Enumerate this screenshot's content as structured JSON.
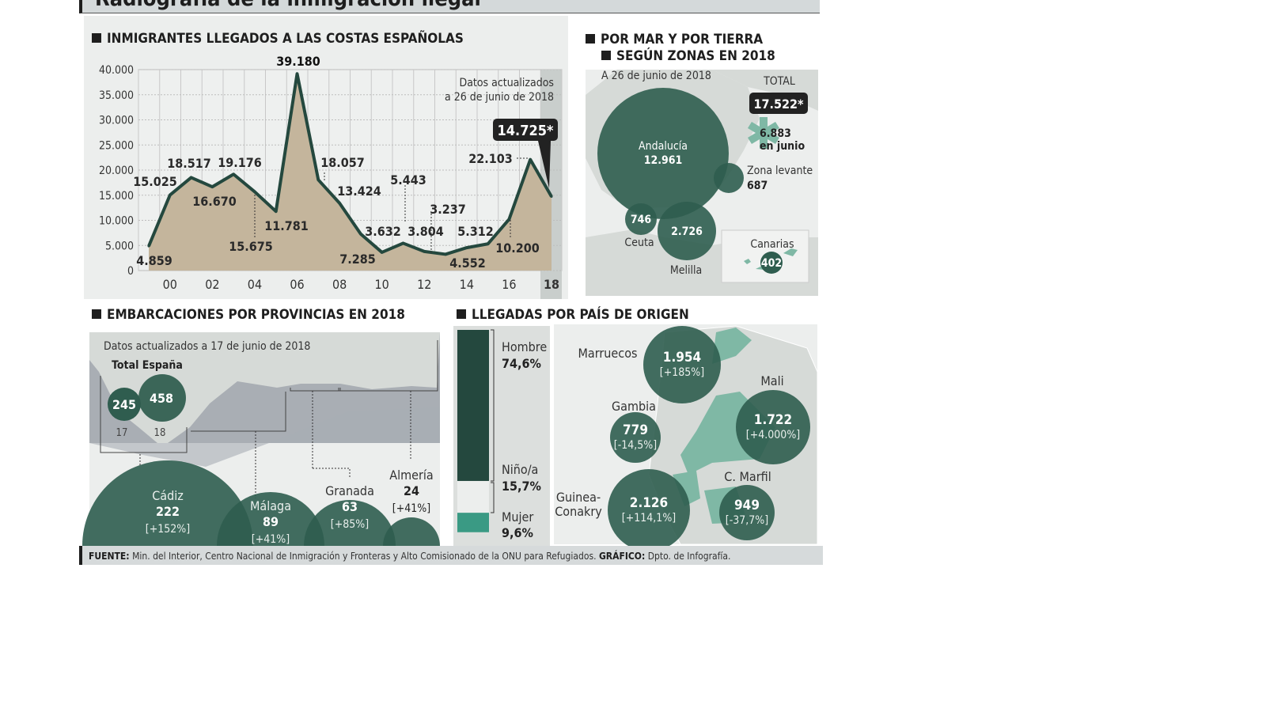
{
  "title": "Radiografía de la inmigración ilegal",
  "colors": {
    "dark_green": "#2f5d4f",
    "line": "#24483e",
    "area": "#c4b59c",
    "teal": "#3a9a84",
    "light_teal": "#7fb8a5",
    "panel": "#eceeed",
    "map_land": "#d6dad7",
    "sea": "#a9aeb4",
    "badge": "#222222"
  },
  "chart_data": [
    {
      "type": "area",
      "title": "INMIGRANTES LLEGADOS A LAS COSTAS ESPAÑOLAS",
      "note": "Datos actualizados a 26 de junio de 2018",
      "x": [
        1999,
        2000,
        2001,
        2002,
        2003,
        2004,
        2005,
        2006,
        2007,
        2008,
        2009,
        2010,
        2011,
        2012,
        2013,
        2014,
        2015,
        2016,
        2017,
        2018
      ],
      "values": [
        4859,
        15025,
        18517,
        16670,
        19176,
        15675,
        11781,
        39180,
        18057,
        13424,
        7285,
        3632,
        5443,
        3804,
        3237,
        4552,
        5312,
        10200,
        22103,
        14725
      ],
      "data_labels": [
        "4.859",
        "15.025",
        "18.517",
        "16.670",
        "19.176",
        "15.675",
        "11.781",
        "39.180",
        "18.057",
        "13.424",
        "7.285",
        "3.632",
        "5.443",
        "3.804",
        "3.237",
        "4.552",
        "5.312",
        "10.200",
        "22.103",
        "14.725*"
      ],
      "x_tick_labels": [
        "00",
        "02",
        "04",
        "06",
        "08",
        "10",
        "12",
        "14",
        "16",
        "18"
      ],
      "y_tick_labels": [
        "0",
        "5.000",
        "10.000",
        "15.000",
        "20.000",
        "25.000",
        "30.000",
        "35.000",
        "40.000"
      ],
      "ylim": [
        0,
        40000
      ],
      "grid": true,
      "highlight": "18"
    },
    {
      "type": "bubble",
      "title_line1": "POR MAR Y POR TIERRA",
      "title_line2": "SEGÚN ZONAS EN 2018",
      "subtitle": "A 26 de junio de 2018",
      "total_label": "TOTAL",
      "total_value": "17.522*",
      "june_value": "6.883",
      "june_label": "en junio",
      "zones": [
        {
          "name": "Andalucía",
          "value": 12961,
          "label": "12.961"
        },
        {
          "name": "Zona levante",
          "value": 687,
          "label": "687"
        },
        {
          "name": "Ceuta",
          "value": 746,
          "label": "746"
        },
        {
          "name": "Melilla",
          "value": 2726,
          "label": "2.726"
        },
        {
          "name": "Canarias",
          "value": 402,
          "label": "402"
        }
      ]
    },
    {
      "type": "bubble",
      "title": "EMBARCACIONES POR PROVINCIAS EN 2018",
      "note": "Datos actualizados a 17 de junio de 2018",
      "total_label": "Total España",
      "totals": [
        {
          "year": "17",
          "value": 245,
          "label": "245"
        },
        {
          "year": "18",
          "value": 458,
          "label": "458"
        }
      ],
      "provinces": [
        {
          "name": "Cádiz",
          "value": 222,
          "label": "222",
          "change": "[+152%]"
        },
        {
          "name": "Málaga",
          "value": 89,
          "label": "89",
          "change": "[+41%]"
        },
        {
          "name": "Granada",
          "value": 63,
          "label": "63",
          "change": "[+85%]"
        },
        {
          "name": "Almería",
          "value": 24,
          "label": "24",
          "change": "[+41%]"
        }
      ]
    },
    {
      "type": "bubble",
      "title": "LLEGADAS POR PAÍS DE ORIGEN",
      "gender": [
        {
          "name": "Hombre",
          "value": 74.6,
          "label": "74,6%"
        },
        {
          "name": "Niño/a",
          "value": 15.7,
          "label": "15,7%"
        },
        {
          "name": "Mujer",
          "value": 9.6,
          "label": "9,6%"
        }
      ],
      "countries": [
        {
          "name": "Marruecos",
          "value": 1954,
          "label": "1.954",
          "change": "[+185%]"
        },
        {
          "name": "Gambia",
          "value": 779,
          "label": "779",
          "change": "[-14,5%]"
        },
        {
          "name": "Mali",
          "value": 1722,
          "label": "1.722",
          "change": "[+4.000%]"
        },
        {
          "name": "Guinea-",
          "name2": "Conakry",
          "value": 2126,
          "label": "2.126",
          "change": "[+114,1%]"
        },
        {
          "name": "C. Marfil",
          "value": 949,
          "label": "949",
          "change": "[-37,7%]"
        }
      ]
    }
  ],
  "footer": {
    "source_label": "FUENTE:",
    "source": "Min. del Interior, Centro Nacional de Inmigración y Fronteras y Alto Comisionado de la ONU para Refugiados.",
    "graphic_label": "GRÁFICO:",
    "graphic": "Dpto. de Infografía."
  }
}
